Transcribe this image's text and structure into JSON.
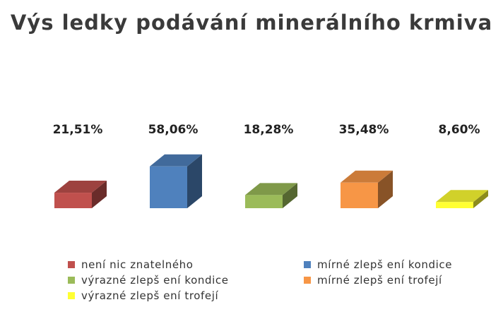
{
  "chart_data": {
    "type": "bar",
    "title": "Výs ledky podávání minerálního krmiva",
    "categories": [
      "není nic znatelného",
      "mírné zlepš ení kondice",
      "výrazné zlepš ení kondice",
      "mírné zlepš ení trofejí",
      "výrazné zlepš ení trofejí"
    ],
    "values": [
      21.51,
      58.06,
      18.28,
      35.48,
      8.6
    ],
    "data_labels": [
      "21,51%",
      "58,06%",
      "18,28%",
      "35,48%",
      "8,60%"
    ],
    "colors": [
      "#c0504d",
      "#4f81bd",
      "#9bbb59",
      "#f79646",
      "#ffff33"
    ],
    "style": "3d-columns",
    "legend_position": "bottom",
    "grid": false
  }
}
